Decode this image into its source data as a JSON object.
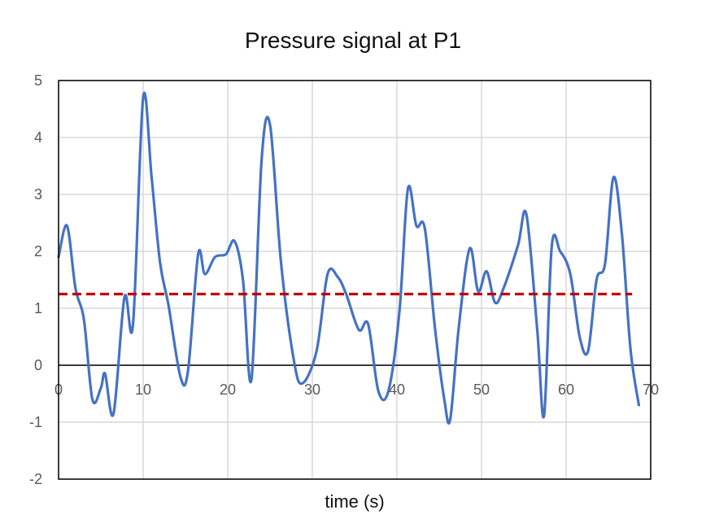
{
  "chart_data": {
    "type": "line",
    "title": "Pressure signal at P1",
    "xlabel": "time (s)",
    "ylabel": "",
    "xlim": [
      0,
      70
    ],
    "ylim": [
      -2,
      5
    ],
    "xticks": [
      0,
      10,
      20,
      30,
      40,
      50,
      60,
      70
    ],
    "yticks": [
      -2,
      -1,
      0,
      1,
      2,
      3,
      4,
      5
    ],
    "grid": true,
    "legend": "none",
    "zero_line": 0,
    "series": [
      {
        "color": "#4472C4",
        "style": "solid",
        "points": [
          [
            0,
            1.9
          ],
          [
            1,
            2.45
          ],
          [
            2,
            1.35
          ],
          [
            3,
            0.8
          ],
          [
            4,
            -0.6
          ],
          [
            5,
            -0.4
          ],
          [
            5.5,
            -0.15
          ],
          [
            6.5,
            -0.85
          ],
          [
            7.8,
            1.2
          ],
          [
            8.8,
            0.72
          ],
          [
            10,
            4.7
          ],
          [
            11,
            3.3
          ],
          [
            12,
            1.8
          ],
          [
            13,
            1.05
          ],
          [
            14.4,
            -0.2
          ],
          [
            15.3,
            -0.1
          ],
          [
            16.5,
            1.95
          ],
          [
            17.3,
            1.6
          ],
          [
            18.5,
            1.9
          ],
          [
            19.8,
            1.95
          ],
          [
            20.8,
            2.18
          ],
          [
            21.8,
            1.5
          ],
          [
            22.8,
            -0.25
          ],
          [
            24,
            3.6
          ],
          [
            25,
            4.22
          ],
          [
            26.3,
            1.8
          ],
          [
            27.8,
            0.1
          ],
          [
            28.8,
            -0.32
          ],
          [
            30.5,
            0.25
          ],
          [
            31.8,
            1.6
          ],
          [
            33,
            1.55
          ],
          [
            34,
            1.25
          ],
          [
            35.5,
            0.62
          ],
          [
            36.6,
            0.72
          ],
          [
            37.8,
            -0.45
          ],
          [
            39,
            -0.45
          ],
          [
            40.3,
            0.95
          ],
          [
            41.3,
            3.1
          ],
          [
            42.3,
            2.45
          ],
          [
            43.3,
            2.4
          ],
          [
            44.5,
            0.65
          ],
          [
            45.6,
            -0.6
          ],
          [
            46.3,
            -0.95
          ],
          [
            47.3,
            0.65
          ],
          [
            48.6,
            2.05
          ],
          [
            49.6,
            1.3
          ],
          [
            50.6,
            1.65
          ],
          [
            51.6,
            1.1
          ],
          [
            52.6,
            1.35
          ],
          [
            54.3,
            2.1
          ],
          [
            55.3,
            2.65
          ],
          [
            56.6,
            0.6
          ],
          [
            57.4,
            -0.88
          ],
          [
            58.3,
            2.08
          ],
          [
            59.3,
            2.0
          ],
          [
            60.5,
            1.6
          ],
          [
            61.6,
            0.5
          ],
          [
            62.6,
            0.25
          ],
          [
            63.6,
            1.5
          ],
          [
            64.6,
            1.78
          ],
          [
            65.6,
            3.3
          ],
          [
            66.6,
            2.3
          ],
          [
            67.6,
            0.3
          ],
          [
            68.6,
            -0.7
          ]
        ]
      },
      {
        "color": "#C00000",
        "style": "dashed",
        "points": [
          [
            0,
            1.25
          ],
          [
            67.8,
            1.25
          ]
        ]
      }
    ]
  }
}
